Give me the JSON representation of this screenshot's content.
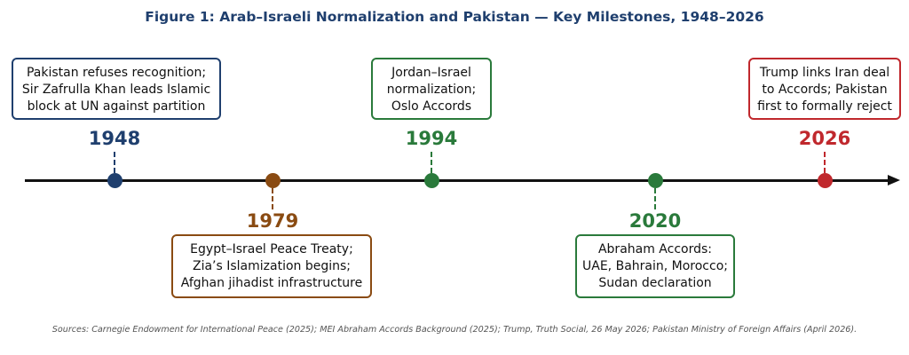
{
  "title": "Figure 1: Arab–Israeli Normalization and Pakistan — Key Milestones, 1948–2026",
  "colors": {
    "blue": "#1f3f6e",
    "brown": "#8a4b12",
    "green": "#2a7a3b",
    "red": "#c0282d",
    "axis": "#111111"
  },
  "events": [
    {
      "year": "1948",
      "color": "#1f3f6e",
      "lines": [
        "Pakistan refuses recognition;",
        "Sir Zafrulla Khan leads Islamic",
        "block at UN against partition"
      ]
    },
    {
      "year": "1979",
      "color": "#8a4b12",
      "lines": [
        "Egypt–Israel Peace Treaty;",
        "Zia’s Islamization begins;",
        "Afghan jihadist infrastructure"
      ]
    },
    {
      "year": "1994",
      "color": "#2a7a3b",
      "lines": [
        "Jordan–Israel",
        "normalization;",
        "Oslo Accords"
      ]
    },
    {
      "year": "2020",
      "color": "#2a7a3b",
      "lines": [
        "Abraham Accords:",
        "UAE, Bahrain, Morocco;",
        "Sudan declaration"
      ]
    },
    {
      "year": "2026",
      "color": "#c0282d",
      "lines": [
        "Trump links Iran deal",
        "to Accords; Pakistan",
        "first to formally reject"
      ]
    }
  ],
  "sources": "Sources: Carnegie Endowment for International Peace (2025); MEI Abraham Accords Background (2025); Trump, Truth Social, 26 May 2026; Pakistan Ministry of Foreign Affairs (April 2026)."
}
